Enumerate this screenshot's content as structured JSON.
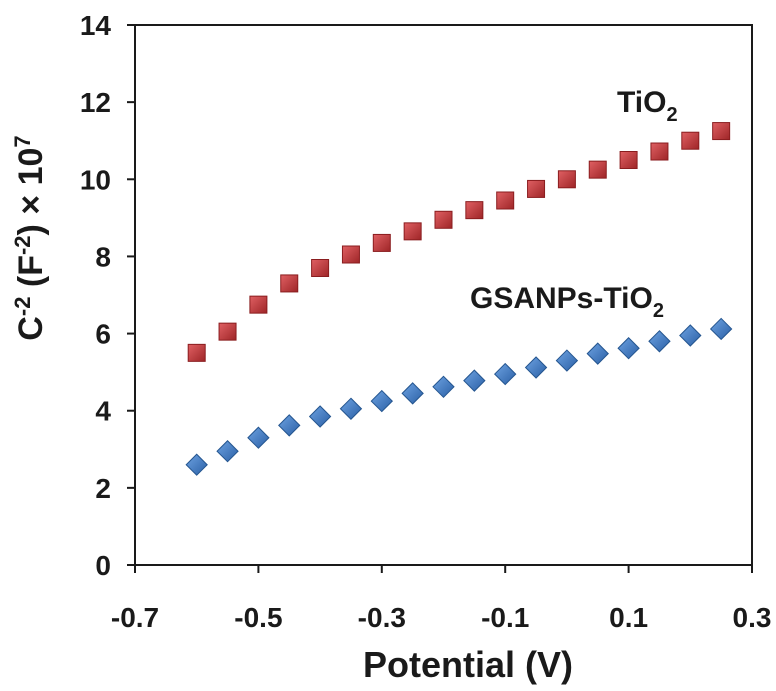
{
  "chart_data": {
    "type": "scatter",
    "xlabel": "Potential (V)",
    "ylabel": {
      "base": "C",
      "sup1": "-2",
      "mid": " (F",
      "sup2": "-2",
      "tail": ") × 10",
      "sup3": "7"
    },
    "xlim": [
      -0.7,
      0.3
    ],
    "ylim": [
      0,
      14
    ],
    "x_ticks": [
      "-0.7",
      "-0.5",
      "-0.3",
      "-0.1",
      "0.1",
      "0.3"
    ],
    "y_ticks": [
      "0",
      "2",
      "4",
      "6",
      "8",
      "10",
      "12",
      "14"
    ],
    "grid": false,
    "x": [
      -0.6,
      -0.55,
      -0.5,
      -0.45,
      -0.4,
      -0.35,
      -0.3,
      -0.25,
      -0.2,
      -0.15,
      -0.1,
      -0.05,
      0.0,
      0.05,
      0.1,
      0.15,
      0.2,
      0.25
    ],
    "series": [
      {
        "name": "TiO2",
        "label_base": "TiO",
        "label_sub": "2",
        "marker": "square",
        "color": "#c0393b",
        "values": [
          5.5,
          6.05,
          6.75,
          7.3,
          7.7,
          8.05,
          8.35,
          8.65,
          8.95,
          9.2,
          9.45,
          9.75,
          10.0,
          10.25,
          10.5,
          10.72,
          11.0,
          11.25
        ]
      },
      {
        "name": "GSANPs-TiO2",
        "label_base": "GSANPs-TiO",
        "label_sub": "2",
        "marker": "diamond",
        "color": "#3d7cc9",
        "values": [
          2.6,
          2.95,
          3.3,
          3.62,
          3.85,
          4.05,
          4.25,
          4.45,
          4.62,
          4.78,
          4.95,
          5.12,
          5.3,
          5.48,
          5.62,
          5.8,
          5.95,
          6.12
        ]
      }
    ]
  }
}
